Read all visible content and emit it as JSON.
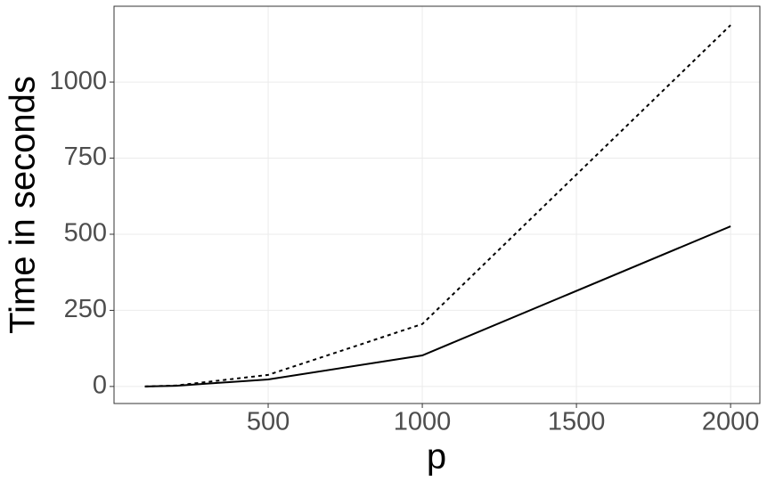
{
  "chart_data": {
    "type": "line",
    "x_label": "p",
    "y_label": "Time in seconds",
    "x": [
      100,
      200,
      500,
      1000,
      2000
    ],
    "series": [
      {
        "color": "#000000",
        "dash": "solid",
        "values": [
          0,
          2,
          23,
          102,
          526
        ]
      },
      {
        "color": "#000000",
        "dash": "dashed",
        "values": [
          0,
          3,
          38,
          205,
          1187
        ]
      }
    ],
    "xlim": [
      0,
      2095
    ],
    "ylim": [
      -56,
      1249
    ],
    "xticks": [
      500,
      1000,
      1500,
      2000
    ],
    "yticks": [
      0,
      250,
      500,
      750,
      1000
    ],
    "grid": true
  }
}
